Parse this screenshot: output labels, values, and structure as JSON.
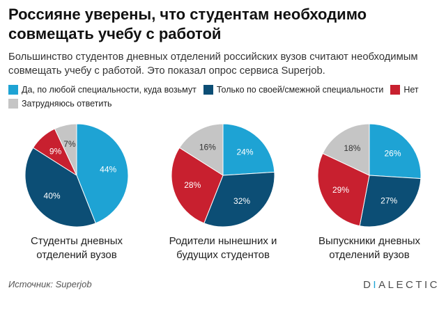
{
  "chart_data": {
    "type": "pie",
    "title": "Россияне уверены, что студентам необходимо совмещать учебу с работой",
    "subtitle": "Большинство студентов дневных отделений российских вузов считают необходимым совмещать учебу с работой. Это показал опрос сервиса Superjob.",
    "categories": [
      "Да, по любой специальности, куда возьмут",
      "Только по своей/смежной специальности",
      "Нет",
      "Затрудняюсь ответить"
    ],
    "colors": [
      "#1ea3d4",
      "#0c4e75",
      "#c8202f",
      "#c5c5c5"
    ],
    "unit": "%",
    "legend_position": "top-left",
    "series": [
      {
        "name": "Студенты дневных отделений вузов",
        "values": [
          44,
          40,
          9,
          7
        ]
      },
      {
        "name": "Родители нынешних и будущих студентов",
        "values": [
          24,
          32,
          28,
          16
        ]
      },
      {
        "name": "Выпускники дневных отделений вузов",
        "values": [
          26,
          27,
          29,
          18
        ]
      }
    ]
  },
  "footer": {
    "source": "Источник: Superjob",
    "logo": "DIALECTIC",
    "logo_accent_color": "#1ea3d4"
  }
}
